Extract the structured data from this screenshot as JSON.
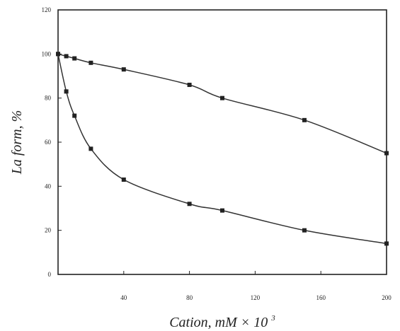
{
  "chart_data": {
    "type": "line",
    "title": "",
    "xlabel": "Cation, mM × 10",
    "xlabel_superscript": "3",
    "ylabel": "La form, %",
    "xlim": [
      0,
      200
    ],
    "ylim": [
      0,
      120
    ],
    "xticks": [
      40,
      80,
      120,
      160,
      200
    ],
    "xtick_labels": [
      "40",
      "80",
      "120",
      "160",
      "200"
    ],
    "yticks": [
      0,
      20,
      40,
      60,
      80,
      100,
      120
    ],
    "ytick_labels": [
      "0",
      "20",
      "40",
      "60",
      "80",
      "100",
      "120"
    ],
    "grid": false,
    "legend": "none",
    "series": [
      {
        "x": [
          0,
          5,
          10,
          20,
          40,
          80,
          100,
          150,
          200
        ],
        "y": [
          100,
          99,
          98,
          96,
          93,
          86,
          80,
          70,
          55
        ],
        "color": "#222222"
      },
      {
        "x": [
          0,
          5,
          10,
          20,
          40,
          80,
          100,
          150,
          200
        ],
        "y": [
          100,
          83,
          72,
          57,
          43,
          32,
          29,
          20,
          14
        ],
        "color": "#222222"
      }
    ]
  }
}
